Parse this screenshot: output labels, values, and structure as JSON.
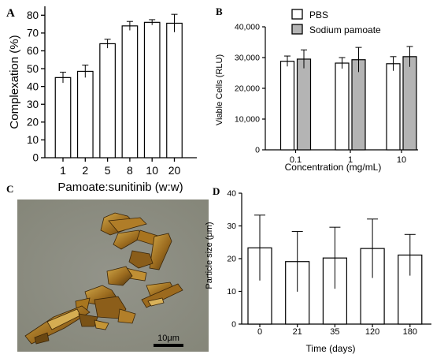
{
  "panels": [
    {
      "letter": "A"
    },
    {
      "letter": "B"
    },
    {
      "letter": "C"
    },
    {
      "letter": "D"
    }
  ],
  "micrograph": {
    "scale_bar_label": "10μm",
    "colors": {
      "background": "#8d8e84",
      "crystal": "#9a6a1e",
      "crystal_dark": "#4a3210",
      "crystal_light": "#d2a94a"
    }
  },
  "chart_data": [
    {
      "panel": "A",
      "type": "bar",
      "categories": [
        "1",
        "2",
        "5",
        "8",
        "10",
        "20"
      ],
      "values": [
        45,
        48.5,
        64,
        74,
        76,
        75.5
      ],
      "errors": [
        3,
        3.5,
        2.5,
        2.5,
        1.5,
        5
      ],
      "xlabel": "Pamoate:sunitinib (w:w)",
      "ylabel": "Complexation (%)",
      "ylim": [
        0,
        85
      ],
      "yticks": [
        0,
        10,
        20,
        30,
        40,
        50,
        60,
        70,
        80
      ],
      "ytick_labels": [
        "0",
        "10",
        "20",
        "30",
        "40",
        "50",
        "60",
        "70",
        "80"
      ],
      "bar_color": "#ffffff",
      "grid": false
    },
    {
      "panel": "B",
      "type": "bar",
      "categories": [
        "0.1",
        "1",
        "10"
      ],
      "series": [
        {
          "name": "PBS",
          "values": [
            28800,
            28200,
            28000
          ],
          "errors": [
            1700,
            1800,
            2300
          ],
          "color": "#ffffff"
        },
        {
          "name": "Sodium pamoate",
          "values": [
            29500,
            29300,
            30300
          ],
          "errors": [
            3000,
            4000,
            3300
          ],
          "color": "#b4b4b4"
        }
      ],
      "xlabel": "Concentration (mg/mL)",
      "ylabel": "Viable Cells (RLU)",
      "ylim": [
        0,
        40000
      ],
      "yticks": [
        0,
        10000,
        20000,
        30000,
        40000
      ],
      "ytick_labels": [
        "0",
        "10,000",
        "20,000",
        "30,000",
        "40,000"
      ],
      "legend": "top",
      "grid": false
    },
    {
      "panel": "D",
      "type": "bar",
      "categories": [
        "0",
        "21",
        "35",
        "120",
        "180"
      ],
      "values": [
        23.3,
        19.1,
        20.2,
        23.1,
        21.1
      ],
      "errors": [
        10,
        9.2,
        9.4,
        9,
        6.3
      ],
      "xlabel": "Time (days)",
      "ylabel": "Particle size (μm)",
      "ylim": [
        0,
        40
      ],
      "yticks": [
        0,
        10,
        20,
        30,
        40
      ],
      "ytick_labels": [
        "0",
        "10",
        "20",
        "30",
        "40"
      ],
      "bar_color": "#ffffff",
      "grid": false
    }
  ]
}
